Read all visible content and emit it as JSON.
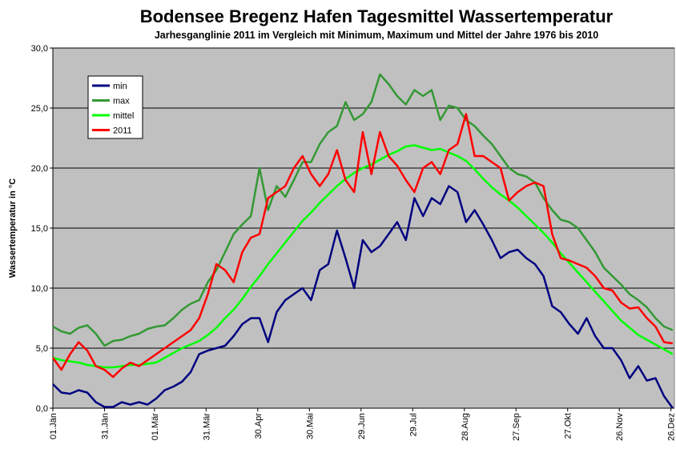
{
  "chart_data": {
    "type": "line",
    "title": "Bodensee Bregenz Hafen Tagesmittel Wassertemperatur",
    "subtitle": "Jarhesganglinie 2011 im Vergleich mit Minimum, Maximum und Mittel der Jahre 1976 bis 2010",
    "y_label": "Wassertemperatur in °C",
    "x": [
      0,
      5,
      10,
      15,
      20,
      25,
      30,
      35,
      40,
      45,
      50,
      55,
      60,
      65,
      70,
      75,
      80,
      85,
      90,
      95,
      100,
      105,
      110,
      115,
      120,
      125,
      130,
      135,
      140,
      145,
      150,
      155,
      160,
      165,
      170,
      175,
      180,
      185,
      190,
      195,
      200,
      205,
      210,
      215,
      220,
      225,
      230,
      235,
      240,
      245,
      250,
      255,
      260,
      265,
      270,
      275,
      280,
      285,
      290,
      295,
      300,
      305,
      310,
      315,
      320,
      325,
      330,
      335,
      340,
      345,
      350,
      355,
      360
    ],
    "series": [
      {
        "name": "min",
        "color": "#000080",
        "values": [
          2.0,
          1.3,
          1.2,
          1.5,
          1.3,
          0.5,
          0.1,
          0.1,
          0.5,
          0.3,
          0.5,
          0.3,
          0.8,
          1.5,
          1.8,
          2.2,
          3.0,
          4.5,
          4.8,
          5.0,
          5.2,
          6.0,
          7.0,
          7.5,
          7.5,
          5.5,
          8.0,
          9.0,
          9.5,
          10.0,
          9.0,
          11.5,
          12.0,
          14.8,
          12.5,
          10.0,
          14.0,
          13.0,
          13.5,
          14.5,
          15.5,
          14.0,
          17.5,
          16.0,
          17.5,
          17.0,
          18.5,
          18.0,
          15.5,
          16.5,
          15.3,
          14.0,
          12.5,
          13.0,
          13.2,
          12.5,
          12.0,
          11.0,
          8.5,
          8.0,
          7.0,
          6.2,
          7.5,
          6.0,
          5.0,
          5.0,
          4.0,
          2.5,
          3.5,
          2.3,
          2.5,
          1.0,
          0
        ]
      },
      {
        "name": "max",
        "color": "#339933",
        "values": [
          6.8,
          6.4,
          6.2,
          6.7,
          6.9,
          6.2,
          5.2,
          5.6,
          5.7,
          6.0,
          6.2,
          6.6,
          6.8,
          6.9,
          7.5,
          8.2,
          8.7,
          9.0,
          10.5,
          11.5,
          13.0,
          14.5,
          15.3,
          16.0,
          20.0,
          16.5,
          18.5,
          17.6,
          19.0,
          20.5,
          20.5,
          22.0,
          23.0,
          23.5,
          25.5,
          24.0,
          24.5,
          25.5,
          27.8,
          27.0,
          26.0,
          25.3,
          26.5,
          26.0,
          26.5,
          24.0,
          25.2,
          25.0,
          24.0,
          23.5,
          22.7,
          22.0,
          21.0,
          20.0,
          19.5,
          19.3,
          18.8,
          17.5,
          16.5,
          15.7,
          15.5,
          15.0,
          14.0,
          13.0,
          11.7,
          11.0,
          10.3,
          9.5,
          9.0,
          8.4,
          7.5,
          6.8,
          6.5
        ]
      },
      {
        "name": "mittel",
        "color": "#00ff00",
        "values": [
          4.2,
          4.0,
          3.9,
          3.8,
          3.6,
          3.5,
          3.4,
          3.4,
          3.5,
          3.6,
          3.6,
          3.7,
          3.8,
          4.2,
          4.6,
          5.0,
          5.3,
          5.6,
          6.1,
          6.7,
          7.5,
          8.2,
          9.1,
          10.1,
          11.0,
          12.0,
          12.9,
          13.8,
          14.7,
          15.6,
          16.3,
          17.1,
          17.8,
          18.5,
          19.1,
          19.6,
          20.0,
          20.3,
          20.7,
          21.1,
          21.4,
          21.8,
          21.9,
          21.7,
          21.5,
          21.6,
          21.3,
          21.0,
          20.6,
          19.9,
          19.1,
          18.4,
          17.8,
          17.3,
          16.7,
          16.0,
          15.3,
          14.6,
          13.8,
          12.9,
          12.1,
          11.3,
          10.5,
          9.7,
          8.9,
          8.1,
          7.3,
          6.7,
          6.1,
          5.7,
          5.3,
          4.9,
          4.5
        ]
      },
      {
        "name": "2011",
        "color": "#ff0000",
        "values": [
          4.2,
          3.2,
          4.5,
          5.5,
          4.8,
          3.5,
          3.2,
          2.6,
          3.3,
          3.8,
          3.5,
          4.0,
          4.5,
          5.0,
          5.5,
          6.0,
          6.5,
          7.5,
          9.5,
          12.0,
          11.5,
          10.5,
          13.0,
          14.2,
          14.5,
          17.5,
          18.0,
          18.5,
          20.0,
          21.0,
          19.5,
          18.5,
          19.5,
          21.5,
          19.0,
          18.0,
          23.0,
          19.5,
          23.0,
          21.0,
          20.2,
          19.0,
          18.0,
          20.0,
          20.5,
          19.5,
          21.5,
          22.0,
          24.5,
          21.0,
          21.0,
          20.5,
          20.0,
          17.3,
          18.0,
          18.5,
          18.8,
          18.5,
          14.5,
          12.5,
          12.3,
          12.0,
          11.7,
          11.0,
          10.0,
          9.8,
          8.8,
          8.3,
          8.4,
          7.5,
          6.8,
          5.5,
          5.4
        ]
      }
    ],
    "xlim": [
      0,
      361
    ],
    "xticks": [
      {
        "value": 0,
        "label": "01.Jän"
      },
      {
        "value": 30,
        "label": "31.Jän"
      },
      {
        "value": 59,
        "label": "01.Mär"
      },
      {
        "value": 89,
        "label": "31.Mär"
      },
      {
        "value": 119,
        "label": "30.Apr"
      },
      {
        "value": 149,
        "label": "30.Mai"
      },
      {
        "value": 179,
        "label": "29.Jun"
      },
      {
        "value": 209,
        "label": "29.Jul"
      },
      {
        "value": 239,
        "label": "28.Aug"
      },
      {
        "value": 269,
        "label": "27.Sep"
      },
      {
        "value": 299,
        "label": "27.Okt"
      },
      {
        "value": 329,
        "label": "26.Nov"
      },
      {
        "value": 359,
        "label": "26.Dez"
      }
    ],
    "ylim": [
      0,
      30
    ],
    "yticks": [
      {
        "value": 0,
        "label": "0,0"
      },
      {
        "value": 5,
        "label": "5,0"
      },
      {
        "value": 10,
        "label": "10,0"
      },
      {
        "value": 15,
        "label": "15,0"
      },
      {
        "value": 20,
        "label": "20,0"
      },
      {
        "value": 25,
        "label": "25,0"
      },
      {
        "value": 30,
        "label": "30,0"
      }
    ],
    "grid": true,
    "plot_background": "#c0c0c0",
    "legend": "upper left"
  }
}
